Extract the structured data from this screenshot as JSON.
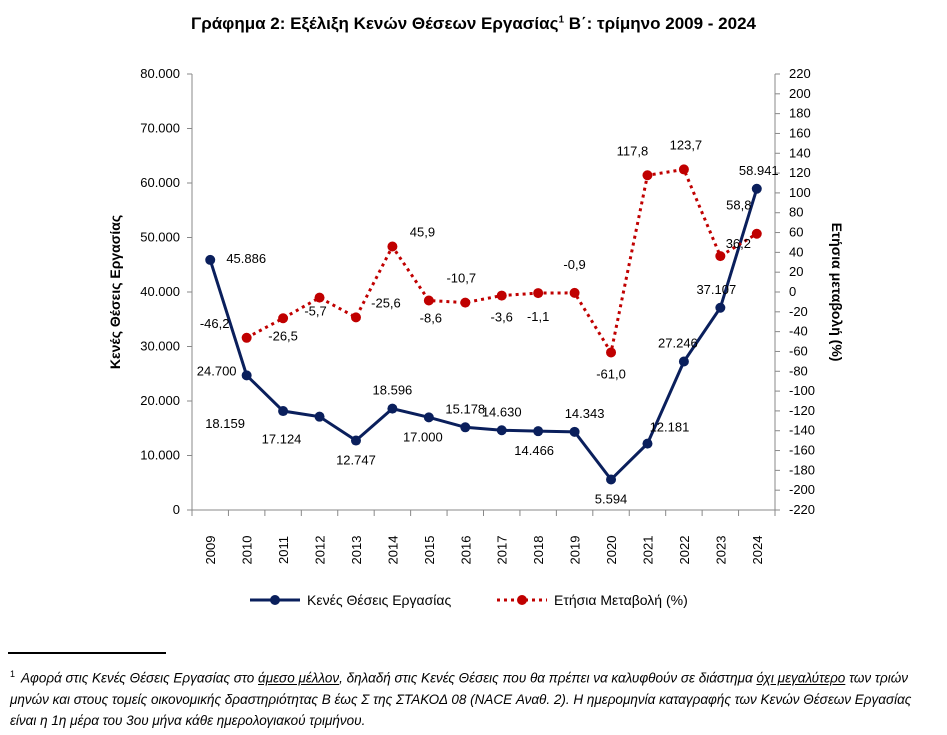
{
  "title": {
    "main": "Γράφημα 2: Εξέλιξη Κενών Θέσεων Εργασίας",
    "sup": "1",
    "rest": " Β΄: τρίμηνο 2009 - 2024"
  },
  "chart_data": {
    "type": "line",
    "title": "Γράφημα 2: Εξέλιξη Κενών Θέσεων Εργασίας Β΄: τρίμηνο 2009 - 2024",
    "categories": [
      "2009",
      "2010",
      "2011",
      "2012",
      "2013",
      "2014",
      "2015",
      "2016",
      "2017",
      "2018",
      "2019",
      "2020",
      "2021",
      "2022",
      "2023",
      "2024"
    ],
    "ylabel": "Κενές Θέσεις Εργασίας",
    "y2label": "Ετήσια μεταβολή (%)",
    "ylim": [
      0,
      80000
    ],
    "yticks": [
      "0",
      "10.000",
      "20.000",
      "30.000",
      "40.000",
      "50.000",
      "60.000",
      "70.000",
      "80.000"
    ],
    "y2lim": [
      -220,
      220
    ],
    "y2ticks": [
      "-220",
      "-200",
      "-180",
      "-160",
      "-140",
      "-120",
      "-100",
      "-80",
      "-60",
      "-40",
      "-20",
      "0",
      "20",
      "40",
      "60",
      "80",
      "100",
      "120",
      "140",
      "160",
      "180",
      "200",
      "220"
    ],
    "legend_position": "bottom",
    "series": [
      {
        "name": "Κενές Θέσεις Εργασίας",
        "axis": "left",
        "color": "#0a1f5c",
        "style": "solid",
        "values": [
          45886,
          24700,
          18159,
          17124,
          12747,
          18596,
          17000,
          15178,
          14630,
          14466,
          14343,
          5594,
          12181,
          27246,
          37107,
          58941
        ],
        "labels": [
          "45.886",
          "24.700",
          "18.159",
          "17.124",
          "12.747",
          "18.596",
          "17.000",
          "15.178",
          "14.630",
          "14.466",
          "14.343",
          "5.594",
          "12.181",
          "27.246",
          "37.107",
          "58.941"
        ]
      },
      {
        "name": "Ετήσια Μεταβολή (%)",
        "axis": "right",
        "color": "#c00000",
        "style": "dotted",
        "values": [
          null,
          -46.2,
          -26.5,
          -5.7,
          -25.6,
          45.9,
          -8.6,
          -10.7,
          -3.6,
          -1.1,
          -0.9,
          -61.0,
          117.8,
          123.7,
          36.2,
          58.8
        ],
        "labels": [
          "",
          "-46,2",
          "-26,5",
          "-5,7",
          "-25,6",
          "45,9",
          "-8,6",
          "-10,7",
          "-3,6",
          "-1,1",
          "-0,9",
          "-61,0",
          "117,8",
          "123,7",
          "36,2",
          "58,8"
        ]
      }
    ]
  },
  "footnote": {
    "mark": "1",
    "p1": "Αφορά στις Κενές Θέσεις Εργασίας στο ",
    "u1": "άμεσο μέλλον",
    "p2": ", δηλαδή στις Κενές Θέσεις που θα πρέπει να καλυφθούν σε διάστημα ",
    "u2": "όχι μεγαλύτερο",
    "p3": " των τριών μηνών και στους τομείς οικονομικής δραστηριότητας Β έως Σ της ΣΤΑΚΟΔ 08 (NACE Αναθ. 2). Η ημερομηνία καταγραφής των Κενών Θέσεων Εργασίας είναι η 1η μέρα του 3ου μήνα κάθε ημερολογιακού τριμήνου."
  }
}
